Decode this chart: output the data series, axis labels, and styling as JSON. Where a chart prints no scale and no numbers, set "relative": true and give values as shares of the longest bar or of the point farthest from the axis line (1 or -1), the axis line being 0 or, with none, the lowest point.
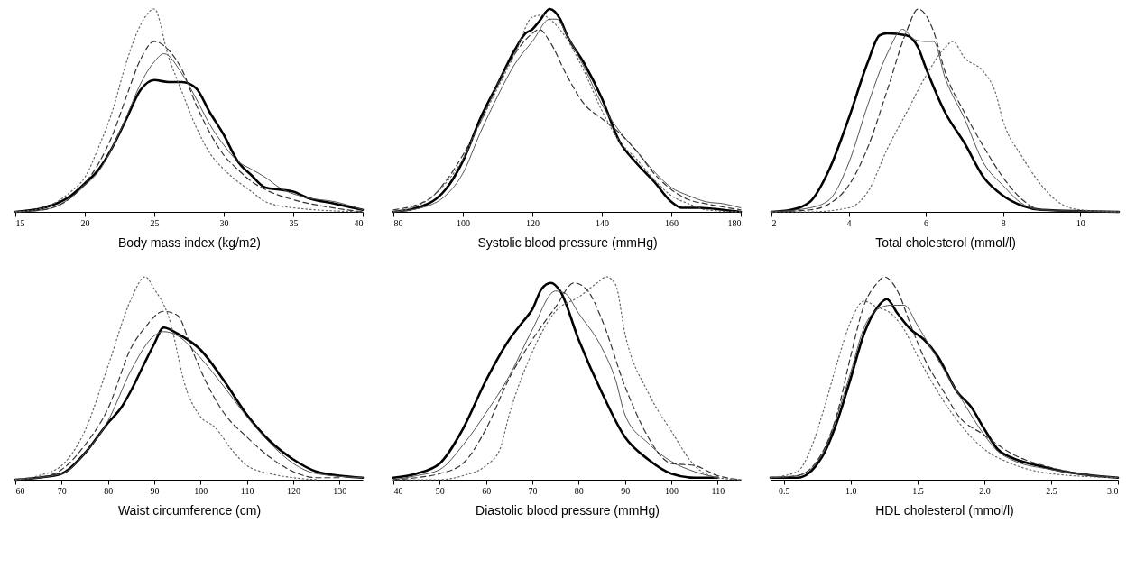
{
  "chart_data": [
    {
      "type": "line",
      "relative": true,
      "tick_labels": "x",
      "xlabel": "Body mass index (kg/m2)",
      "xlim": [
        15,
        40
      ],
      "xticks": [
        15,
        20,
        25,
        30,
        35,
        40
      ],
      "series": [
        {
          "color": "#000000",
          "line_style": "solid",
          "x": [
            15,
            17,
            19,
            20,
            21,
            22,
            23,
            24,
            25,
            26,
            27,
            28,
            29,
            30,
            31,
            32,
            33,
            34,
            35,
            36,
            38,
            40
          ],
          "values": [
            0,
            0.02,
            0.08,
            0.14,
            0.21,
            0.32,
            0.46,
            0.6,
            0.65,
            0.64,
            0.64,
            0.61,
            0.49,
            0.38,
            0.25,
            0.18,
            0.12,
            0.11,
            0.1,
            0.07,
            0.04,
            0.01
          ]
        },
        {
          "color": "#555555",
          "line_style": "solid",
          "x": [
            15,
            17,
            19,
            20,
            21,
            22,
            23,
            24,
            25,
            25.7,
            27,
            28,
            29,
            30,
            31,
            32,
            33,
            34,
            36,
            38,
            40
          ],
          "values": [
            0,
            0.01,
            0.07,
            0.13,
            0.2,
            0.32,
            0.47,
            0.63,
            0.74,
            0.78,
            0.68,
            0.56,
            0.43,
            0.33,
            0.25,
            0.21,
            0.17,
            0.12,
            0.07,
            0.05,
            0.01
          ]
        },
        {
          "color": "#333333",
          "line_style": "dashed",
          "x": [
            15,
            17,
            19,
            20,
            21,
            22,
            23,
            24,
            25,
            26,
            27,
            28,
            29,
            30,
            31,
            32,
            33,
            35,
            37,
            40
          ],
          "values": [
            0,
            0.01,
            0.07,
            0.14,
            0.24,
            0.38,
            0.57,
            0.75,
            0.84,
            0.8,
            0.7,
            0.53,
            0.39,
            0.28,
            0.21,
            0.15,
            0.11,
            0.06,
            0.03,
            0
          ]
        },
        {
          "color": "#666666",
          "line_style": "dotted",
          "x": [
            15,
            17,
            19,
            20,
            21,
            22,
            23,
            24,
            25,
            26,
            27,
            28,
            29,
            30,
            31,
            32,
            33,
            35,
            40
          ],
          "values": [
            0,
            0.02,
            0.1,
            0.17,
            0.32,
            0.5,
            0.74,
            0.92,
            1,
            0.77,
            0.59,
            0.42,
            0.29,
            0.21,
            0.15,
            0.1,
            0.05,
            0.02,
            0
          ]
        }
      ]
    },
    {
      "type": "line",
      "relative": true,
      "tick_labels": "x",
      "xlabel": "Systolic blood pressure (mmHg)",
      "xlim": [
        80,
        180
      ],
      "xticks": [
        80,
        100,
        120,
        140,
        160,
        180
      ],
      "series": [
        {
          "color": "#000000",
          "line_style": "solid",
          "x": [
            80,
            90,
            95,
            100,
            105,
            110,
            115,
            118,
            120,
            122,
            125,
            128,
            130,
            135,
            140,
            145,
            150,
            155,
            160,
            163,
            168,
            175,
            180
          ],
          "values": [
            0,
            0.04,
            0.11,
            0.25,
            0.46,
            0.63,
            0.8,
            0.88,
            0.9,
            0.94,
            1,
            0.95,
            0.87,
            0.73,
            0.56,
            0.35,
            0.24,
            0.15,
            0.05,
            0.02,
            0.02,
            0.01,
            0
          ]
        },
        {
          "color": "#555555",
          "line_style": "solid",
          "x": [
            80,
            90,
            95,
            100,
            105,
            110,
            115,
            120,
            125,
            127,
            130,
            135,
            140,
            145,
            150,
            155,
            160,
            165,
            170,
            175,
            180
          ],
          "values": [
            0,
            0.03,
            0.08,
            0.19,
            0.39,
            0.57,
            0.73,
            0.84,
            0.95,
            0.95,
            0.87,
            0.71,
            0.53,
            0.4,
            0.3,
            0.2,
            0.12,
            0.08,
            0.05,
            0.04,
            0.02
          ]
        },
        {
          "color": "#333333",
          "line_style": "dashed",
          "x": [
            80,
            90,
            95,
            100,
            105,
            110,
            115,
            120,
            122,
            125,
            130,
            135,
            140,
            145,
            150,
            155,
            160,
            165,
            170,
            180
          ],
          "values": [
            0.01,
            0.06,
            0.15,
            0.28,
            0.44,
            0.63,
            0.78,
            0.88,
            0.9,
            0.84,
            0.67,
            0.53,
            0.46,
            0.39,
            0.3,
            0.19,
            0.11,
            0.06,
            0.04,
            0.01
          ]
        },
        {
          "color": "#666666",
          "line_style": "dotted",
          "x": [
            80,
            90,
            95,
            100,
            105,
            110,
            115,
            120,
            123,
            125,
            130,
            135,
            140,
            145,
            150,
            155,
            160,
            165,
            170,
            180
          ],
          "values": [
            0,
            0.06,
            0.14,
            0.26,
            0.44,
            0.61,
            0.78,
            0.96,
            0.97,
            0.95,
            0.85,
            0.69,
            0.5,
            0.35,
            0.26,
            0.16,
            0.08,
            0.04,
            0.01,
            0
          ]
        }
      ]
    },
    {
      "type": "line",
      "relative": true,
      "tick_labels": "x",
      "xlabel": "Total cholesterol (mmol/l)",
      "xlim": [
        2,
        11
      ],
      "xticks": [
        2,
        4,
        6,
        8,
        10
      ],
      "series": [
        {
          "color": "#000000",
          "line_style": "solid",
          "x": [
            2,
            2.5,
            3,
            3.5,
            4,
            4.5,
            4.8,
            5,
            5.5,
            5.8,
            6,
            6.5,
            7,
            7.5,
            8,
            8.5,
            9,
            11
          ],
          "values": [
            0,
            0.01,
            0.05,
            0.21,
            0.46,
            0.74,
            0.87,
            0.88,
            0.87,
            0.81,
            0.71,
            0.49,
            0.34,
            0.17,
            0.08,
            0.03,
            0.01,
            0
          ]
        },
        {
          "color": "#555555",
          "line_style": "solid",
          "x": [
            2,
            3,
            3.5,
            4,
            4.5,
            5,
            5.4,
            5.7,
            6,
            6.2,
            6.5,
            7,
            7.5,
            8,
            8.5,
            9,
            11
          ],
          "values": [
            0,
            0.02,
            0.06,
            0.24,
            0.53,
            0.78,
            0.9,
            0.85,
            0.84,
            0.84,
            0.66,
            0.46,
            0.24,
            0.13,
            0.04,
            0.01,
            0
          ]
        },
        {
          "color": "#333333",
          "line_style": "dashed",
          "x": [
            2,
            3,
            3.5,
            4,
            4.5,
            5,
            5.5,
            5.8,
            6.2,
            6.5,
            7,
            7.5,
            8,
            8.5,
            9,
            11
          ],
          "values": [
            0,
            0.01,
            0.04,
            0.13,
            0.32,
            0.6,
            0.89,
            1,
            0.89,
            0.69,
            0.49,
            0.32,
            0.17,
            0.06,
            0.01,
            0
          ]
        },
        {
          "color": "#666666",
          "line_style": "dotted",
          "x": [
            2,
            3,
            4,
            4.5,
            5,
            5.5,
            6,
            6.5,
            6.7,
            7,
            7.5,
            7.8,
            8,
            8.5,
            9,
            9.5,
            10,
            11
          ],
          "values": [
            0,
            0,
            0.02,
            0.1,
            0.31,
            0.49,
            0.67,
            0.81,
            0.84,
            0.76,
            0.69,
            0.59,
            0.45,
            0.27,
            0.13,
            0.04,
            0.01,
            0
          ]
        }
      ]
    },
    {
      "type": "line",
      "relative": true,
      "tick_labels": "x",
      "xlabel": "Waist circumference (cm)",
      "xlim": [
        60,
        135
      ],
      "xticks": [
        60,
        70,
        80,
        90,
        100,
        110,
        120,
        130
      ],
      "series": [
        {
          "color": "#000000",
          "line_style": "solid",
          "x": [
            60,
            65,
            70,
            75,
            80,
            83,
            85,
            88,
            90,
            92,
            95,
            100,
            105,
            110,
            115,
            120,
            125,
            130,
            135
          ],
          "values": [
            0,
            0.01,
            0.03,
            0.13,
            0.28,
            0.36,
            0.44,
            0.58,
            0.67,
            0.75,
            0.72,
            0.64,
            0.49,
            0.32,
            0.19,
            0.1,
            0.04,
            0.02,
            0.01
          ]
        },
        {
          "color": "#555555",
          "line_style": "solid",
          "x": [
            60,
            70,
            75,
            80,
            85,
            90,
            92,
            95,
            100,
            105,
            110,
            115,
            120,
            125,
            135
          ],
          "values": [
            0,
            0.03,
            0.13,
            0.29,
            0.54,
            0.71,
            0.73,
            0.71,
            0.6,
            0.46,
            0.31,
            0.18,
            0.08,
            0.03,
            0.01
          ]
        },
        {
          "color": "#333333",
          "line_style": "dashed",
          "x": [
            60,
            65,
            70,
            75,
            80,
            85,
            88,
            92,
            95,
            98,
            100,
            105,
            110,
            115,
            120,
            125,
            130
          ],
          "values": [
            0,
            0.01,
            0.05,
            0.17,
            0.35,
            0.65,
            0.75,
            0.83,
            0.81,
            0.65,
            0.54,
            0.33,
            0.21,
            0.11,
            0.04,
            0.01,
            0.01
          ]
        },
        {
          "color": "#666666",
          "line_style": "dotted",
          "x": [
            60,
            65,
            70,
            75,
            80,
            85,
            88,
            90,
            93,
            97,
            100,
            103,
            107,
            110,
            115,
            120,
            125
          ],
          "values": [
            0,
            0.02,
            0.07,
            0.24,
            0.56,
            0.89,
            1,
            0.94,
            0.81,
            0.44,
            0.31,
            0.26,
            0.14,
            0.07,
            0.03,
            0.01,
            0
          ]
        }
      ]
    },
    {
      "type": "line",
      "relative": true,
      "tick_labels": "x",
      "xlabel": "Diastolic blood pressure (mmHg)",
      "xlim": [
        40,
        115
      ],
      "xticks": [
        40,
        50,
        60,
        70,
        80,
        90,
        100,
        110
      ],
      "series": [
        {
          "color": "#000000",
          "line_style": "solid",
          "x": [
            40,
            45,
            50,
            55,
            60,
            65,
            68,
            70,
            72,
            74,
            76,
            80,
            85,
            90,
            95,
            100,
            105,
            110
          ],
          "values": [
            0.01,
            0.03,
            0.08,
            0.25,
            0.49,
            0.69,
            0.78,
            0.84,
            0.94,
            0.97,
            0.93,
            0.69,
            0.43,
            0.21,
            0.1,
            0.03,
            0.01,
            0.01
          ]
        },
        {
          "color": "#555555",
          "line_style": "solid",
          "x": [
            40,
            45,
            50,
            55,
            60,
            65,
            70,
            75,
            77,
            80,
            85,
            88,
            90,
            95,
            100,
            105,
            110
          ],
          "values": [
            0,
            0.02,
            0.05,
            0.17,
            0.33,
            0.51,
            0.74,
            0.93,
            0.92,
            0.82,
            0.65,
            0.49,
            0.32,
            0.18,
            0.09,
            0.04,
            0.01
          ]
        },
        {
          "color": "#333333",
          "line_style": "dashed",
          "x": [
            40,
            45,
            50,
            55,
            60,
            65,
            70,
            75,
            79,
            82,
            85,
            90,
            95,
            98,
            100,
            105,
            110,
            115
          ],
          "values": [
            0,
            0.01,
            0.03,
            0.08,
            0.25,
            0.5,
            0.69,
            0.85,
            0.97,
            0.93,
            0.79,
            0.46,
            0.21,
            0.11,
            0.08,
            0.07,
            0.02,
            0
          ]
        },
        {
          "color": "#666666",
          "line_style": "dotted",
          "x": [
            40,
            50,
            55,
            60,
            63,
            65,
            70,
            75,
            80,
            84,
            86,
            88,
            90,
            95,
            100,
            105,
            110,
            115
          ],
          "values": [
            0,
            0,
            0.02,
            0.07,
            0.15,
            0.32,
            0.63,
            0.83,
            0.9,
            0.97,
            1,
            0.96,
            0.72,
            0.43,
            0.24,
            0.07,
            0.01,
            0
          ]
        }
      ]
    },
    {
      "type": "line",
      "relative": true,
      "tick_labels": "x",
      "xlabel": "HDL cholesterol (mmol/l)",
      "xlim": [
        0.4,
        3.0
      ],
      "xticks": [
        0.5,
        {
          "value": 1,
          "label": "1.0"
        },
        1.5,
        {
          "value": 2,
          "label": "2.0"
        },
        2.5,
        {
          "value": 3,
          "label": "3.0"
        }
      ],
      "series": [
        {
          "color": "#000000",
          "line_style": "solid",
          "x": [
            0.4,
            0.6,
            0.8,
            0.9,
            1.0,
            1.1,
            1.2,
            1.27,
            1.35,
            1.45,
            1.55,
            1.65,
            1.8,
            1.9,
            2.0,
            2.1,
            2.2,
            2.4,
            2.6,
            3.0
          ],
          "values": [
            0.01,
            0.01,
            0.13,
            0.29,
            0.5,
            0.72,
            0.85,
            0.89,
            0.82,
            0.74,
            0.69,
            0.61,
            0.43,
            0.36,
            0.25,
            0.15,
            0.11,
            0.07,
            0.04,
            0.01
          ]
        },
        {
          "color": "#555555",
          "line_style": "solid",
          "x": [
            0.4,
            0.6,
            0.8,
            0.9,
            1.0,
            1.1,
            1.2,
            1.3,
            1.4,
            1.5,
            1.6,
            1.7,
            1.8,
            1.9,
            2.0,
            2.1,
            2.2,
            2.5,
            3.0
          ],
          "values": [
            0.01,
            0.02,
            0.14,
            0.32,
            0.53,
            0.75,
            0.84,
            0.86,
            0.86,
            0.76,
            0.65,
            0.54,
            0.43,
            0.32,
            0.22,
            0.14,
            0.1,
            0.05,
            0.01
          ]
        },
        {
          "color": "#333333",
          "line_style": "dashed",
          "x": [
            0.4,
            0.6,
            0.8,
            0.9,
            1.0,
            1.1,
            1.2,
            1.25,
            1.35,
            1.45,
            1.55,
            1.7,
            1.8,
            2.0,
            2.2,
            2.5,
            3.0
          ],
          "values": [
            0.01,
            0.02,
            0.15,
            0.33,
            0.61,
            0.86,
            0.97,
            1,
            0.93,
            0.76,
            0.6,
            0.43,
            0.32,
            0.22,
            0.13,
            0.06,
            0.01
          ]
        },
        {
          "color": "#666666",
          "line_style": "dotted",
          "x": [
            0.4,
            0.6,
            0.7,
            0.8,
            0.9,
            1.0,
            1.1,
            1.2,
            1.3,
            1.4,
            1.5,
            1.6,
            1.8,
            2.0,
            2.2,
            2.5,
            3.0
          ],
          "values": [
            0.01,
            0.04,
            0.15,
            0.35,
            0.58,
            0.78,
            0.88,
            0.85,
            0.82,
            0.74,
            0.61,
            0.49,
            0.29,
            0.15,
            0.08,
            0.03,
            0.01
          ]
        }
      ]
    }
  ]
}
